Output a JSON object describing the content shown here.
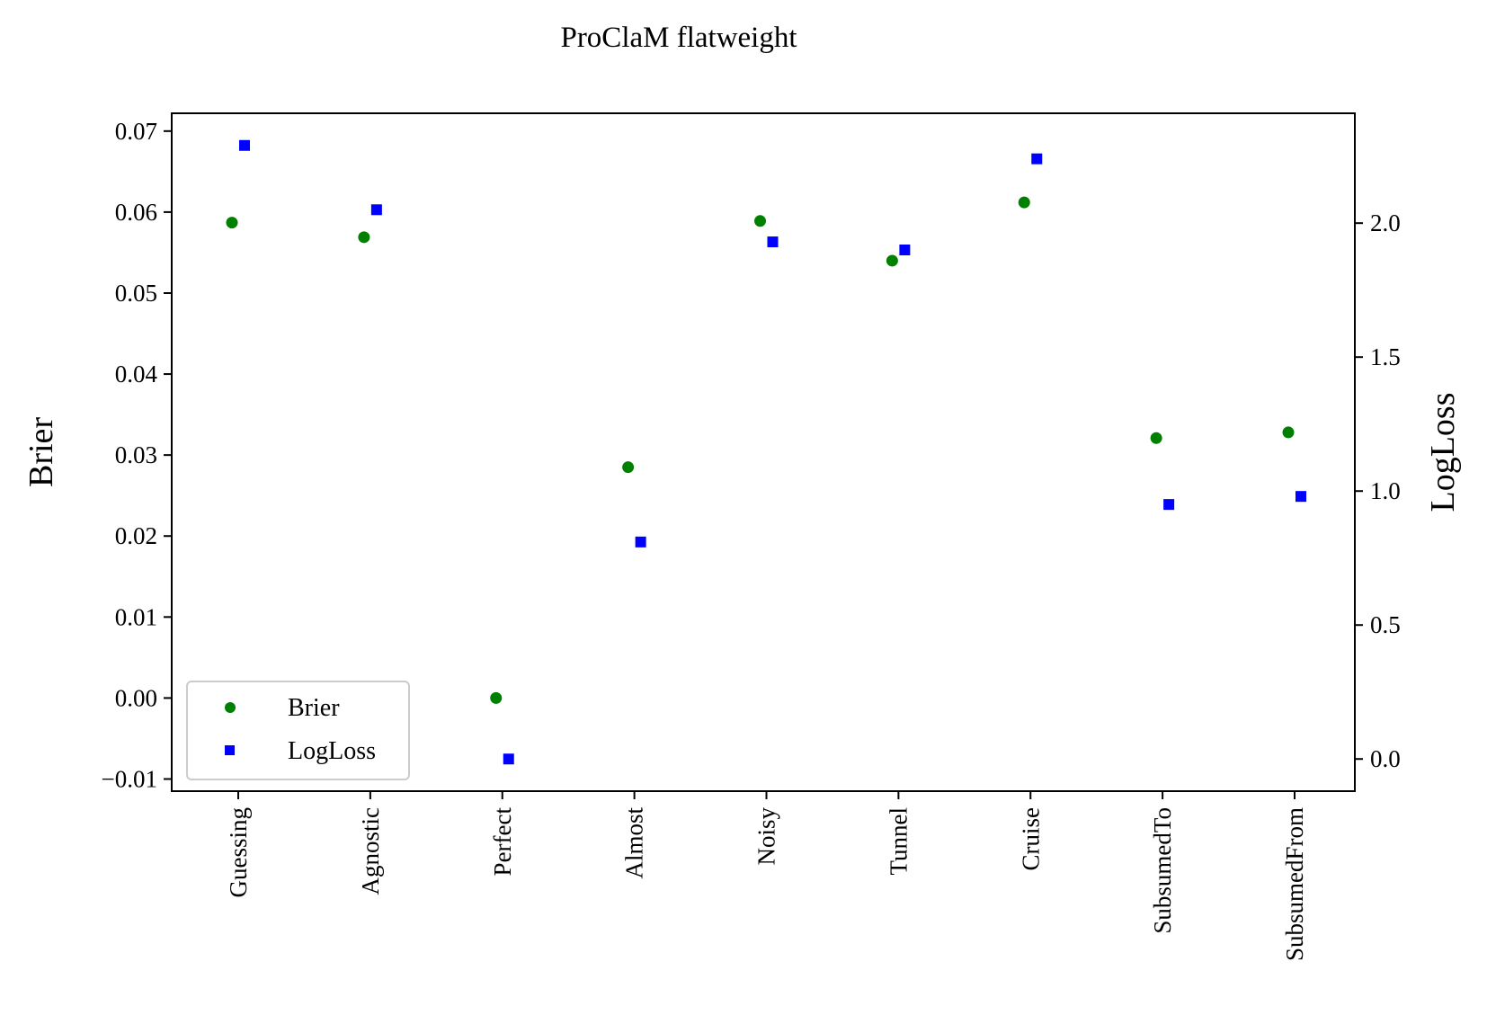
{
  "chart_data": {
    "type": "scatter",
    "title": "ProClaM flatweight",
    "xlabel": "",
    "ylabel": "Brier",
    "y2label": "LogLoss",
    "categories": [
      "Guessing",
      "Agnostic",
      "Perfect",
      "Almost",
      "Noisy",
      "Tunnel",
      "Cruise",
      "SubsumedTo",
      "SubsumedFrom"
    ],
    "series": [
      {
        "name": "Brier",
        "axis": "left",
        "marker": "circle",
        "color": "#008000",
        "values": [
          0.0587,
          0.0569,
          0.0,
          0.0285,
          0.0589,
          0.054,
          0.0612,
          0.0321,
          0.0328
        ]
      },
      {
        "name": "LogLoss",
        "axis": "right",
        "marker": "square",
        "color": "#0000ff",
        "values": [
          2.29,
          2.05,
          0.0,
          0.81,
          1.93,
          1.9,
          2.24,
          0.95,
          0.98
        ]
      }
    ],
    "ylim": [
      -0.0115,
      0.0722
    ],
    "y2lim": [
      -0.12,
      2.41
    ],
    "yticks": [
      "−0.01",
      "0.00",
      "0.01",
      "0.02",
      "0.03",
      "0.04",
      "0.05",
      "0.06",
      "0.07"
    ],
    "y2ticks": [
      "0.0",
      "0.5",
      "1.0",
      "1.5",
      "2.0"
    ],
    "legend_position": "lower-left",
    "grid": false
  }
}
